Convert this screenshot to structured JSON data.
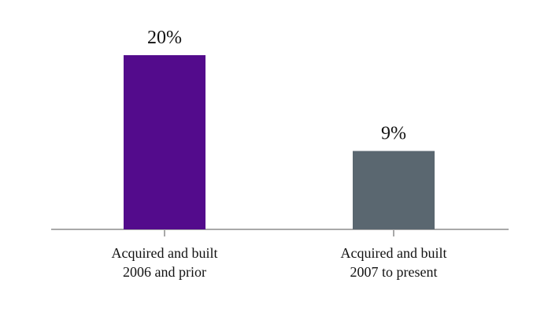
{
  "chart_data": {
    "type": "bar",
    "categories": [
      [
        "Acquired and built",
        "2006 and prior"
      ],
      [
        "Acquired and built",
        "2007 to present"
      ]
    ],
    "values": [
      20,
      9
    ],
    "data_labels": [
      "20%",
      "9%"
    ],
    "bar_colors": [
      "#530B8C",
      "#5A6770"
    ],
    "axis_color": "#A9A9A9",
    "ylim": [
      0,
      20
    ],
    "grid": false,
    "legend": "none",
    "title": "",
    "xlabel": "",
    "ylabel": ""
  }
}
